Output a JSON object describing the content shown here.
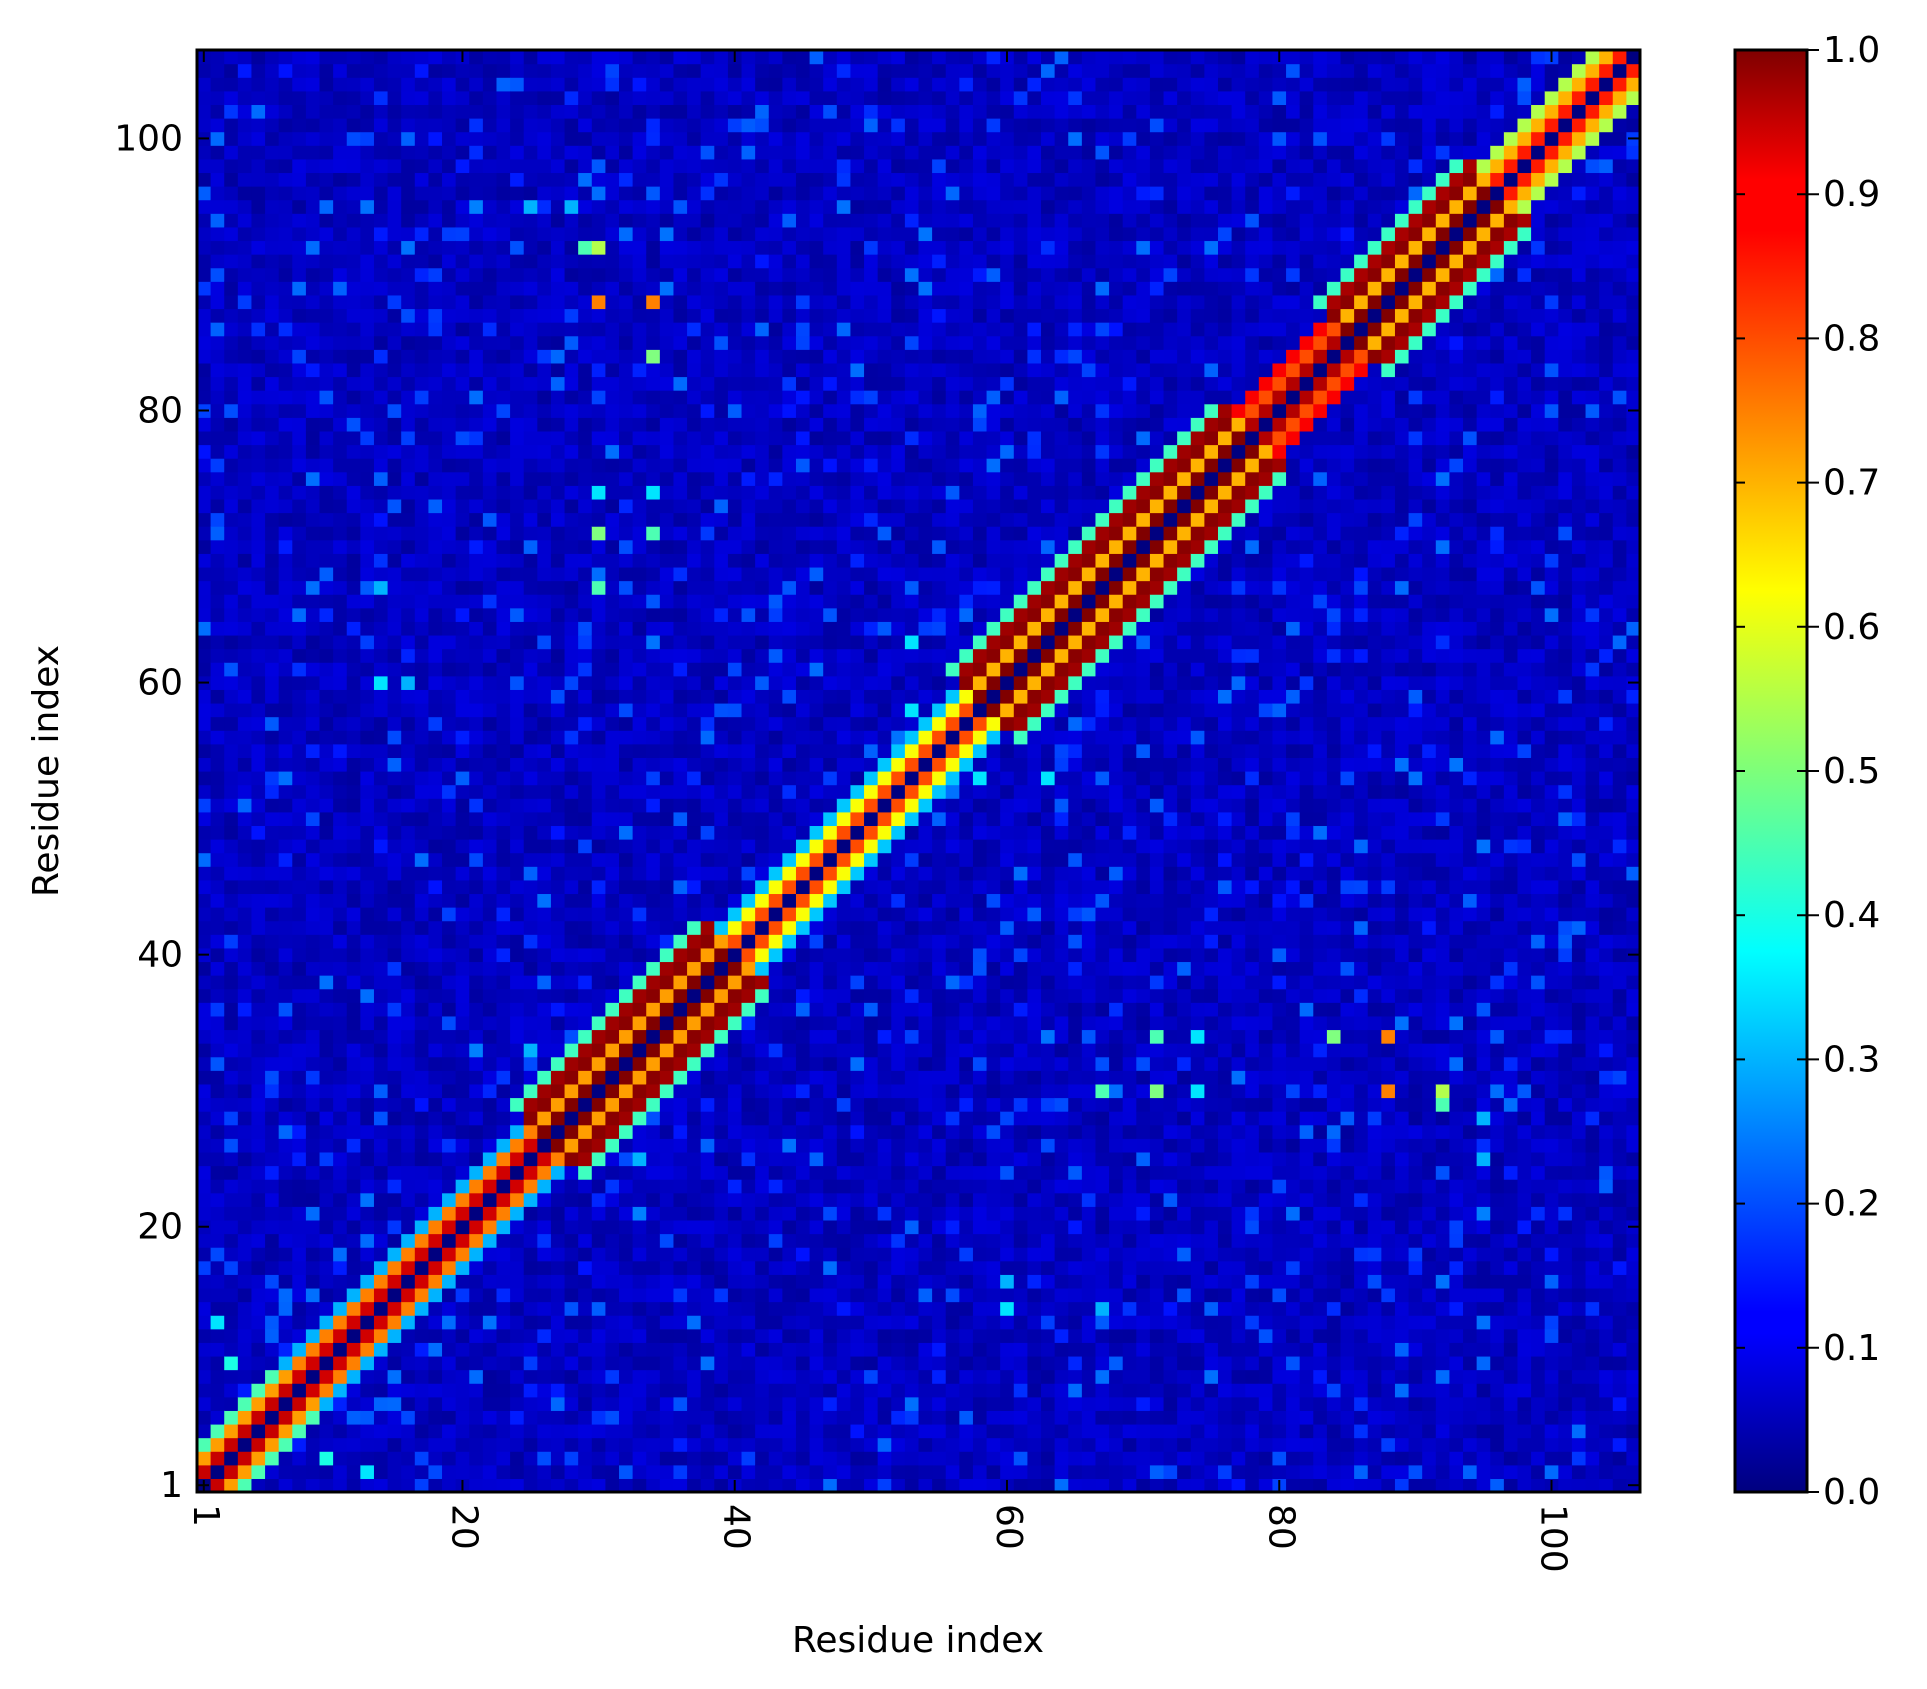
{
  "chart_data": {
    "type": "heatmap",
    "title": "",
    "xlabel": "Residue index",
    "ylabel": "Residue index",
    "n_residues": 106,
    "x_ticks": [
      1,
      20,
      40,
      60,
      80,
      100
    ],
    "y_ticks": [
      1,
      20,
      40,
      60,
      80,
      100
    ],
    "x_tick_labels": [
      "1",
      "20",
      "40",
      "60",
      "80",
      "100"
    ],
    "y_tick_labels": [
      "1",
      "20",
      "40",
      "60",
      "80",
      "100"
    ],
    "value_range": [
      0.0,
      1.0
    ],
    "colormap": "jet",
    "colorbar_ticks": [
      0.0,
      0.1,
      0.2,
      0.3,
      0.4,
      0.5,
      0.6,
      0.7,
      0.8,
      0.9,
      1.0
    ],
    "colorbar_tick_labels": [
      "0.0",
      "0.1",
      "0.2",
      "0.3",
      "0.4",
      "0.5",
      "0.6",
      "0.7",
      "0.8",
      "0.9",
      "1.0"
    ],
    "diagonal_value": 0.0,
    "near_diagonal_profile": [
      {
        "segment": [
          1,
          8
        ],
        "offset1": 0.93,
        "offset2": 0.72,
        "offset3": 0.45
      },
      {
        "segment": [
          9,
          26
        ],
        "offset1": 0.92,
        "offset2": 0.75,
        "offset3": 0.3
      },
      {
        "segment": [
          27,
          40
        ],
        "offset1": 1.0,
        "offset2": 0.72,
        "offset3": 0.99,
        "offset4": 0.97
      },
      {
        "segment": [
          41,
          58
        ],
        "offset1": 0.8,
        "offset2": 0.62,
        "offset3": 0.32
      },
      {
        "segment": [
          59,
          78
        ],
        "offset1": 1.0,
        "offset2": 0.7,
        "offset3": 0.99,
        "offset4": 0.97
      },
      {
        "segment": [
          79,
          85
        ],
        "offset1": 0.95,
        "offset2": 0.8,
        "offset3": 0.88
      },
      {
        "segment": [
          86,
          96
        ],
        "offset1": 1.0,
        "offset2": 0.7,
        "offset3": 0.99,
        "offset4": 0.96
      },
      {
        "segment": [
          97,
          106
        ],
        "offset1": 0.85,
        "offset2": 0.7,
        "offset3": 0.55
      }
    ],
    "off_diagonal_hotspots": [
      {
        "i": 30,
        "j": 88,
        "value": 0.75
      },
      {
        "i": 30,
        "j": 92,
        "value": 0.55
      },
      {
        "i": 30,
        "j": 74,
        "value": 0.35
      },
      {
        "i": 30,
        "j": 71,
        "value": 0.5
      },
      {
        "i": 30,
        "j": 67,
        "value": 0.45
      },
      {
        "i": 34,
        "j": 88,
        "value": 0.75
      },
      {
        "i": 34,
        "j": 84,
        "value": 0.5
      },
      {
        "i": 34,
        "j": 71,
        "value": 0.45
      },
      {
        "i": 34,
        "j": 74,
        "value": 0.35
      },
      {
        "i": 29,
        "j": 92,
        "value": 0.45
      },
      {
        "i": 28,
        "j": 95,
        "value": 0.3
      },
      {
        "i": 21,
        "j": 95,
        "value": 0.25
      },
      {
        "i": 25,
        "j": 95,
        "value": 0.3
      },
      {
        "i": 21,
        "j": 33,
        "value": 0.25
      },
      {
        "i": 25,
        "j": 33,
        "value": 0.3
      },
      {
        "i": 53,
        "j": 63,
        "value": 0.35
      },
      {
        "i": 58,
        "j": 53,
        "value": 0.35
      },
      {
        "i": 14,
        "j": 60,
        "value": 0.35
      },
      {
        "i": 16,
        "j": 60,
        "value": 0.3
      },
      {
        "i": 2,
        "j": 13,
        "value": 0.35
      },
      {
        "i": 3,
        "j": 10,
        "value": 0.4
      },
      {
        "i": 14,
        "j": 67,
        "value": 0.3
      }
    ]
  }
}
